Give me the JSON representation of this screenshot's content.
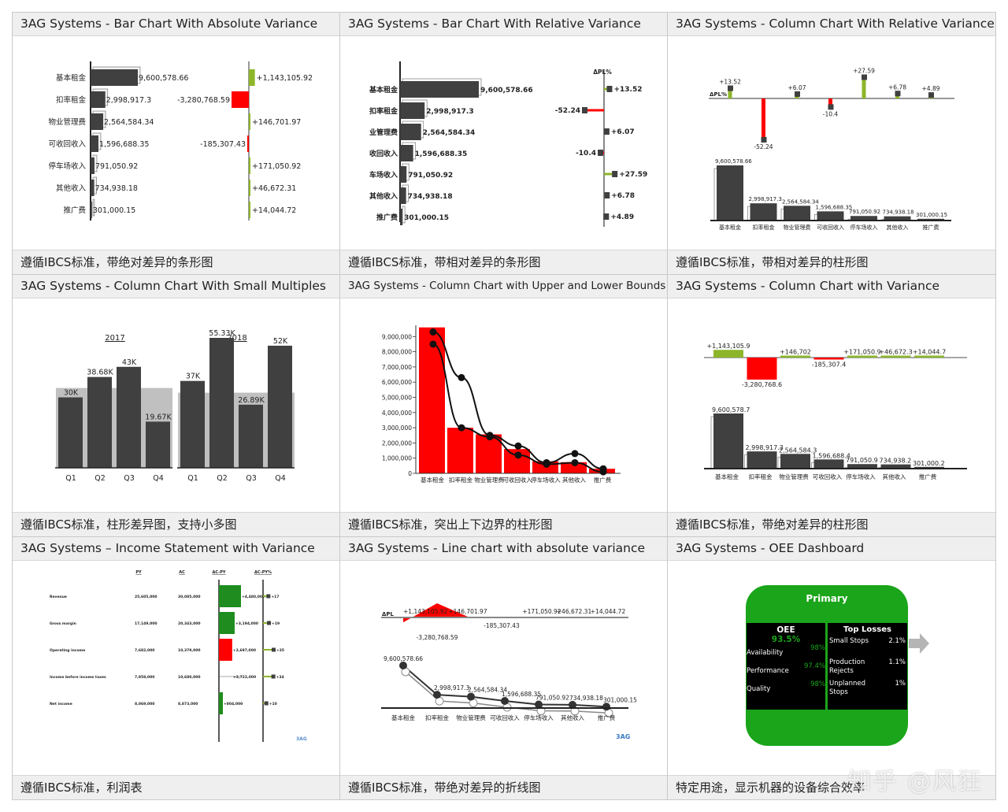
{
  "colors": {
    "dark": "#404040",
    "red": "#ff0000",
    "green": "#8db52a",
    "darkgreen": "#1e8c1e",
    "oee_green": "#1aa51a",
    "grey": "#c0c0c0"
  },
  "cells": [
    {
      "title": "3AG Systems - Bar Chart With Absolute Variance",
      "caption": "遵循IBCS标准，带绝对差异的条形图"
    },
    {
      "title": "3AG Systems - Bar Chart With Relative Variance",
      "caption": "遵循IBCS标准，带相对差异的条形图"
    },
    {
      "title": "3AG Systems - Column Chart With Relative Variance",
      "caption": "遵循IBCS标准，带相对差异的柱形图"
    },
    {
      "title": "3AG Systems - Column Chart With Small Multiples",
      "caption": "遵循IBCS标准，柱形差异图，支持小多图"
    },
    {
      "title": "3AG Systems - Column Chart with Upper and Lower Bounds",
      "caption": "遵循IBCS标准，突出上下边界的柱形图"
    },
    {
      "title": "3AG Systems - Column Chart with Variance",
      "caption": "遵循IBCS标准，带绝对差异的柱形图"
    },
    {
      "title": "3AG Systems – Income Statement with Variance",
      "caption": "遵循IBCS标准，利润表"
    },
    {
      "title": "3AG Systems - Line chart with absolute variance",
      "caption": "遵循IBCS标准，带绝对差异的折线图"
    },
    {
      "title": "3AG Systems - OEE Dashboard",
      "caption": "特定用途，显示机器的设备综合效率"
    }
  ],
  "watermark": "知乎 @风狂",
  "chart_data": [
    {
      "type": "bar",
      "categories": [
        "基本租金",
        "扣率租金",
        "物业管理费",
        "可收回收入",
        "停车场收入",
        "其他收入",
        "推广费"
      ],
      "series": [
        {
          "values": [
            9600578.66,
            2998917.3,
            2564584.34,
            1596688.35,
            791050.92,
            734938.18,
            301000.15
          ]
        },
        {
          "values": [
            1143105.92,
            -3280768.59,
            146701.97,
            -185307.43,
            171050.92,
            46672.31,
            14044.72
          ]
        }
      ],
      "value_labels": [
        "9,600,578.66",
        "2,998,917.3",
        "2,564,584.34",
        "1,596,688.35",
        "791,050.92",
        "734,938.18",
        "301,000.15"
      ],
      "variance_labels": [
        "+1,143,105.92",
        "-3,280,768.59",
        "+146,701.97",
        "-185,307.43",
        "+171,050.92",
        "+46,672.31",
        "+14,044.72"
      ]
    },
    {
      "type": "bar",
      "categories": [
        "基本租金",
        "扣率租金",
        "物业管理费",
        "可收回收入",
        "停车场收入",
        "其他收入",
        "推广费"
      ],
      "category_labels": [
        "基本租金",
        "扣率租金",
        "业管理费",
        "收回收入",
        "车场收入",
        "其他收入",
        "推广费"
      ],
      "series": [
        {
          "values": [
            9600578.66,
            2998917.3,
            2564584.34,
            1596688.35,
            791050.92,
            734938.18,
            301000.15
          ]
        },
        {
          "name": "ΔPL%",
          "values": [
            13.52,
            -52.24,
            6.07,
            -10.4,
            27.59,
            6.78,
            4.89
          ]
        }
      ],
      "value_labels": [
        "9,600,578.66",
        "2,998,917.3",
        "2,564,584.34",
        "1,596,688.35",
        "791,050.92",
        "734,938.18",
        "301,000.15"
      ],
      "variance_labels": [
        "+13.52",
        "-52.24",
        "+6.07",
        "-10.4",
        "+27.59",
        "+6.78",
        "+4.89"
      ]
    },
    {
      "type": "bar",
      "categories": [
        "基本租金",
        "扣率租金",
        "物业管理费",
        "可收回收入",
        "停车场收入",
        "其他收入",
        "推广费"
      ],
      "series": [
        {
          "values": [
            9600578.66,
            2998917.3,
            2564584.34,
            1596688.35,
            791050.92,
            734938.18,
            301000.15
          ]
        },
        {
          "name": "ΔPL%",
          "values": [
            13.52,
            -52.24,
            6.07,
            -10.4,
            27.59,
            6.78,
            4.89
          ]
        }
      ],
      "value_labels": [
        "9,600,578.66",
        "2,998,917.3",
        "2,564,584.34",
        "1,596,688.35",
        "791,050.92",
        "734,938.18",
        "301,000.15"
      ],
      "variance_labels": [
        "+13.52",
        "-52.24",
        "+6.07",
        "-10.4",
        "+27.59",
        "+6.78",
        "+4.89"
      ]
    },
    {
      "type": "bar",
      "panels": [
        {
          "title": "2017",
          "categories": [
            "Q1",
            "Q2",
            "Q3",
            "Q4"
          ],
          "actual": [
            30000,
            38680,
            43000,
            19670
          ],
          "plan": [
            34000,
            34000,
            34000,
            34000
          ],
          "labels": [
            "30K",
            "38.68K",
            "43K",
            "19.67K"
          ]
        },
        {
          "title": "2018",
          "categories": [
            "Q1",
            "Q2",
            "Q3",
            "Q4"
          ],
          "actual": [
            37000,
            55330,
            26890,
            52000
          ],
          "plan": [
            32000,
            32000,
            32000,
            32000
          ],
          "labels": [
            "37K",
            "55.33K",
            "26.89K",
            "52K"
          ]
        }
      ]
    },
    {
      "type": "bar",
      "categories": [
        "基本租金",
        "扣率租金",
        "物业管理费",
        "可收回收入",
        "停车场收入",
        "其他收入",
        "推广费"
      ],
      "values": [
        9600578.66,
        2998917.3,
        2564584.34,
        1596688.35,
        791050.92,
        734938.18,
        301000.15
      ],
      "upper": [
        9300000,
        6300000,
        2500000,
        1800000,
        700000,
        1300000,
        300000
      ],
      "lower": [
        8500000,
        3000000,
        2400000,
        1200000,
        600000,
        700000,
        100000
      ],
      "y_ticks": [
        "0",
        "1,000,000",
        "2,000,000",
        "3,000,000",
        "4,000,000",
        "5,000,000",
        "6,000,000",
        "7,000,000",
        "8,000,000",
        "9,000,000"
      ],
      "ylim": [
        0,
        9500000
      ]
    },
    {
      "type": "bar",
      "categories": [
        "基本租金",
        "扣率租金",
        "物业管理费",
        "可收回收入",
        "停车场收入",
        "其他收入",
        "推广费"
      ],
      "series": [
        {
          "values": [
            9600578.7,
            2998917.3,
            2564584.3,
            1596688.4,
            791050.9,
            734938.2,
            301000.2
          ]
        },
        {
          "values": [
            1143105.9,
            -3280768.6,
            146702,
            -185307.4,
            171050.9,
            46672.3,
            14044.7
          ]
        }
      ],
      "value_labels": [
        "9,600,578.7",
        "2,998,917.3",
        "2,564,584.3",
        "1,596,688.4",
        "791,050.9",
        "734,938.2",
        "301,000.2"
      ],
      "variance_labels": [
        "+1,143,105.9",
        "-3,280,768.6",
        "+146,702",
        "-185,307.4",
        "+171,050.9",
        "+46,672.3",
        "+14,044.7"
      ]
    },
    {
      "type": "table",
      "columns": [
        "PY",
        "AC",
        "ΔC-PY",
        "ΔC-PY%"
      ],
      "rows": [
        {
          "label": "Revenue",
          "py": "25,605,000",
          "ac": "30,085,000",
          "delta": "+4,480,000",
          "delta_value": 4480000,
          "pct": "+17",
          "pct_value": 17
        },
        {
          "label": "Gross margin",
          "py": "17,149,000",
          "ac": "20,343,000",
          "delta": "+3,194,000",
          "delta_value": 3194000,
          "pct": "+19",
          "pct_value": 19
        },
        {
          "label": "Operating income",
          "py": "7,682,000",
          "ac": "10,379,000",
          "delta": "+2,697,000",
          "delta_value": 2697000,
          "pct": "+35",
          "pct_value": 35
        },
        {
          "label": "Income before income taxes",
          "py": "7,958,000",
          "ac": "10,680,000",
          "delta": "+2,722,000",
          "delta_value": 2722000,
          "pct": "+34",
          "pct_value": 34
        },
        {
          "label": "Net income",
          "py": "8,069,000",
          "ac": "8,873,000",
          "delta": "+804,000",
          "delta_value": 804000,
          "pct": "+10",
          "pct_value": 10
        }
      ]
    },
    {
      "type": "line",
      "categories": [
        "基本租金",
        "扣率租金",
        "物业管理费",
        "可收回收入",
        "停车场收入",
        "其他收入",
        "推广费"
      ],
      "series": [
        {
          "values": [
            9600578.66,
            2998917.3,
            2564584.34,
            1596688.35,
            791050.92,
            734938.18,
            301000.15
          ]
        },
        {
          "name": "ΔPL",
          "values": [
            1143105.92,
            -3280768.59,
            146701.97,
            -185307.43,
            171050.92,
            46672.31,
            14044.72
          ]
        }
      ],
      "value_labels": [
        "9,600,578.66",
        "2,998,917.3",
        "2,564,584.34",
        "1,596,688.35",
        "791,050.92",
        "734,938.18",
        "301,000.15"
      ],
      "variance_labels": [
        "+1,143,105.92",
        "-3,280,768.59",
        "+146,701.97",
        "-185,307.43",
        "+171,050.92",
        "+46,672.31",
        "+14,044.72"
      ]
    }
  ],
  "oee": {
    "header": "Primary",
    "title": "OEE",
    "value": "93.5%",
    "metrics": [
      {
        "label": "Availability",
        "value": "98%"
      },
      {
        "label": "Performance",
        "value": "97.4%"
      },
      {
        "label": "Quality",
        "value": "98%"
      }
    ],
    "losses_title": "Top Losses",
    "losses": [
      {
        "label": "Small Stops",
        "value": "2.1%"
      },
      {
        "label": "Production Rejects",
        "value": "1.1%"
      },
      {
        "label": "Unplanned Stops",
        "value": "1%"
      }
    ]
  },
  "logo_text": "3AG"
}
